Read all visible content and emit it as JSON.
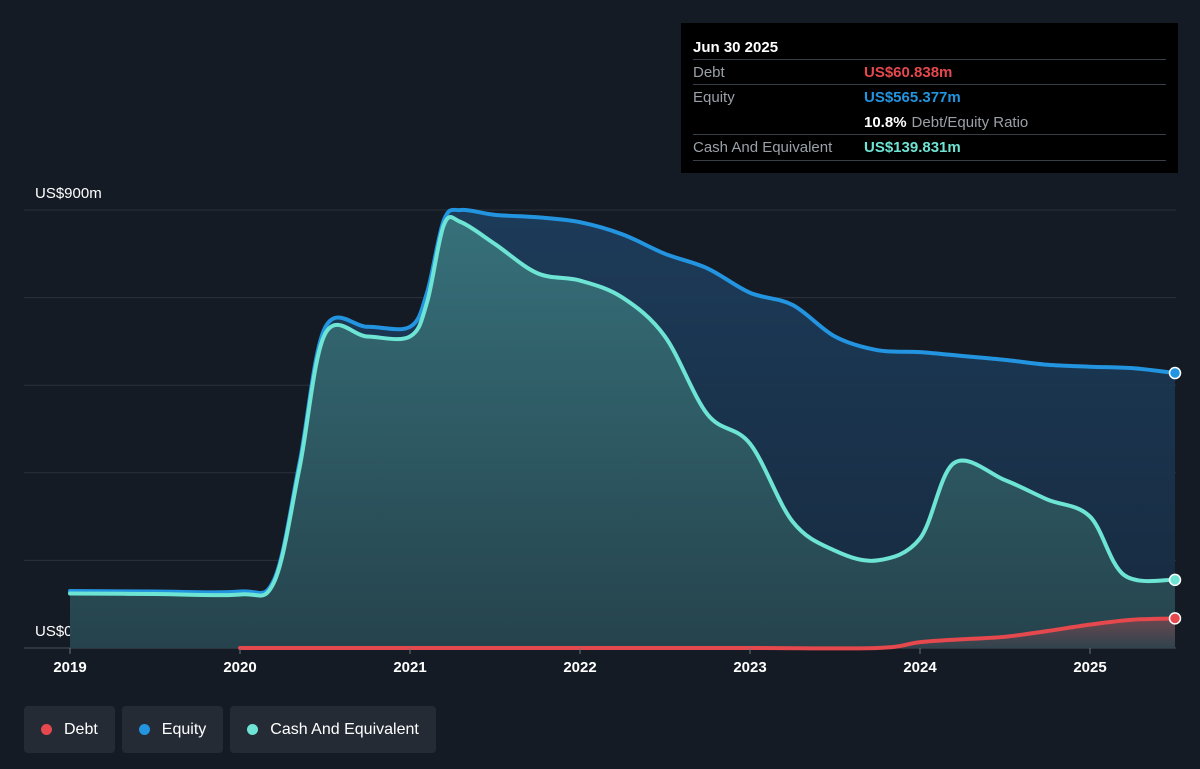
{
  "tooltip": {
    "date": "Jun 30 2025",
    "debt_label": "Debt",
    "debt_value": "US$60.838m",
    "equity_label": "Equity",
    "equity_value": "US$565.377m",
    "ratio_value": "10.8%",
    "ratio_label": "Debt/Equity Ratio",
    "cash_label": "Cash And Equivalent",
    "cash_value": "US$139.831m"
  },
  "legend": [
    {
      "label": "Debt",
      "color": "#e5484d"
    },
    {
      "label": "Equity",
      "color": "#2394df"
    },
    {
      "label": "Cash And Equivalent",
      "color": "#6ee4d4"
    }
  ],
  "colors": {
    "debt": "#e5484d",
    "equity": "#2394df",
    "cash": "#6ee4d4",
    "background": "#151b24"
  },
  "chart_data": {
    "type": "area",
    "y_top_label": "US$900m",
    "y_bottom_label": "US$0",
    "ylim": [
      0,
      900
    ],
    "grid": true,
    "x_ticks": [
      "2019",
      "2020",
      "2021",
      "2022",
      "2023",
      "2024",
      "2025"
    ],
    "series": [
      {
        "name": "Equity",
        "points": [
          [
            2019.0,
            117
          ],
          [
            2019.5,
            116
          ],
          [
            2020.0,
            116
          ],
          [
            2020.2,
            140
          ],
          [
            2020.35,
            380
          ],
          [
            2020.5,
            658
          ],
          [
            2020.75,
            660
          ],
          [
            2021.0,
            660
          ],
          [
            2021.1,
            730
          ],
          [
            2021.2,
            880
          ],
          [
            2021.3,
            900
          ],
          [
            2021.5,
            890
          ],
          [
            2021.75,
            885
          ],
          [
            2022.0,
            875
          ],
          [
            2022.25,
            850
          ],
          [
            2022.5,
            810
          ],
          [
            2022.75,
            780
          ],
          [
            2023.0,
            730
          ],
          [
            2023.25,
            705
          ],
          [
            2023.5,
            640
          ],
          [
            2023.75,
            612
          ],
          [
            2024.0,
            608
          ],
          [
            2024.25,
            600
          ],
          [
            2024.5,
            592
          ],
          [
            2024.75,
            582
          ],
          [
            2025.0,
            578
          ],
          [
            2025.25,
            575
          ],
          [
            2025.5,
            565
          ]
        ]
      },
      {
        "name": "Cash And Equivalent",
        "points": [
          [
            2019.0,
            112
          ],
          [
            2019.5,
            111
          ],
          [
            2020.0,
            110
          ],
          [
            2020.2,
            135
          ],
          [
            2020.35,
            370
          ],
          [
            2020.5,
            645
          ],
          [
            2020.75,
            640
          ],
          [
            2021.0,
            640
          ],
          [
            2021.1,
            710
          ],
          [
            2021.2,
            870
          ],
          [
            2021.3,
            875
          ],
          [
            2021.5,
            830
          ],
          [
            2021.75,
            770
          ],
          [
            2022.0,
            755
          ],
          [
            2022.25,
            720
          ],
          [
            2022.5,
            640
          ],
          [
            2022.75,
            480
          ],
          [
            2023.0,
            420
          ],
          [
            2023.25,
            260
          ],
          [
            2023.5,
            200
          ],
          [
            2023.75,
            180
          ],
          [
            2024.0,
            225
          ],
          [
            2024.2,
            380
          ],
          [
            2024.5,
            345
          ],
          [
            2024.75,
            305
          ],
          [
            2025.0,
            270
          ],
          [
            2025.2,
            150
          ],
          [
            2025.5,
            140
          ]
        ]
      },
      {
        "name": "Debt",
        "points": [
          [
            2020.0,
            0
          ],
          [
            2020.5,
            0
          ],
          [
            2021.0,
            0
          ],
          [
            2022.0,
            0
          ],
          [
            2023.0,
            0
          ],
          [
            2023.75,
            0
          ],
          [
            2024.0,
            12
          ],
          [
            2024.25,
            18
          ],
          [
            2024.5,
            23
          ],
          [
            2024.75,
            35
          ],
          [
            2025.0,
            48
          ],
          [
            2025.25,
            58
          ],
          [
            2025.5,
            60.838
          ]
        ]
      }
    ]
  }
}
